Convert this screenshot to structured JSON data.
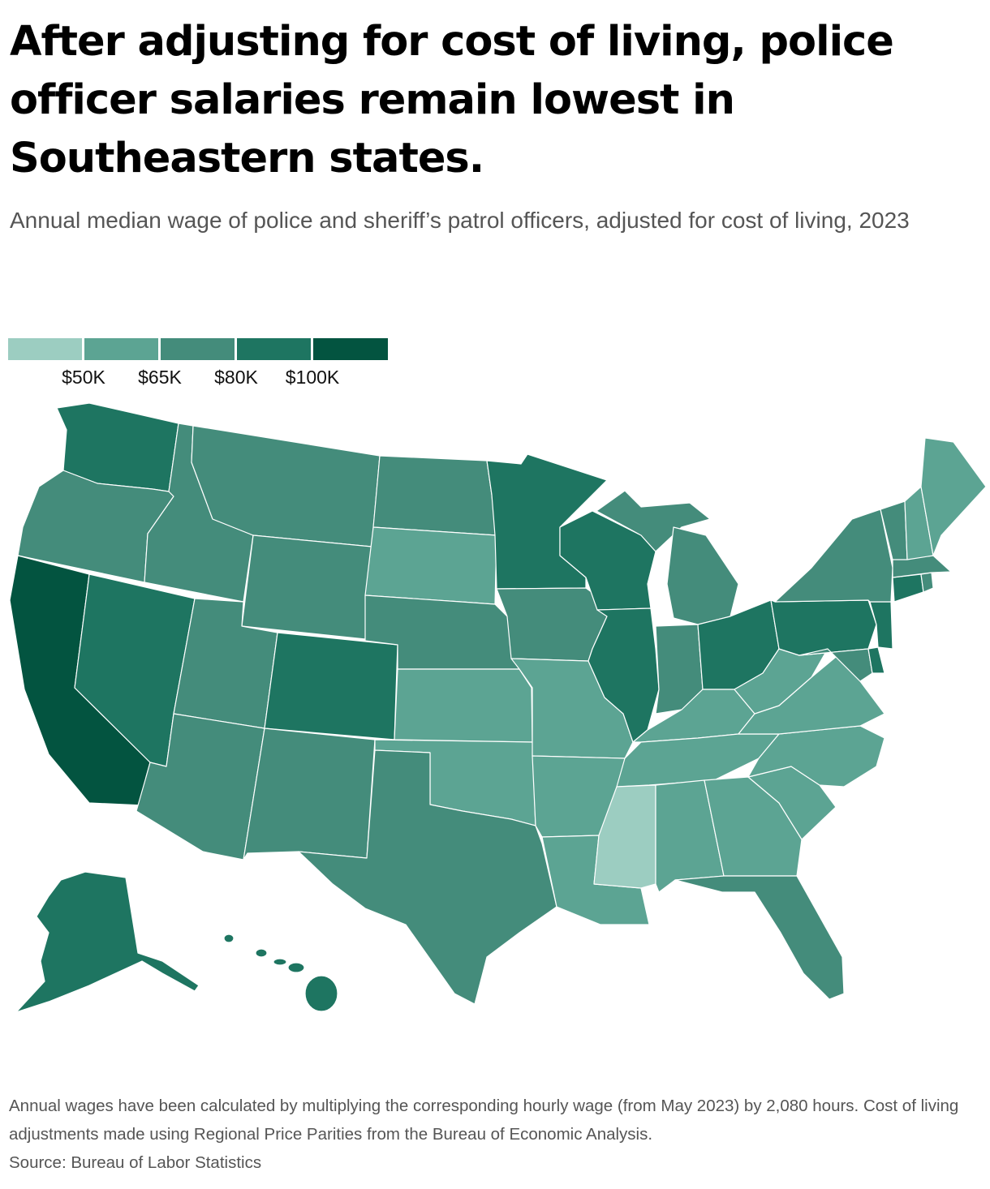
{
  "title": "After adjusting for cost of living, police officer salaries remain lowest in Southeastern states.",
  "subtitle": "Annual median wage of police and sheriff’s patrol officers, adjusted for cost of living, 2023",
  "legend": {
    "colors": [
      "#9ccdc1",
      "#5ca493",
      "#448c7b",
      "#1e7561",
      "#035440"
    ],
    "ticks": [
      "$50K",
      "$65K",
      "$80K",
      "$100K"
    ]
  },
  "states_by_bin": {
    "under_50k": [
      "Mississippi"
    ],
    "50k_65k": [
      "Maine",
      "New Hampshire",
      "South Dakota",
      "Kansas",
      "Missouri",
      "Oklahoma",
      "Arkansas",
      "Louisiana",
      "Alabama",
      "Georgia",
      "South Carolina",
      "North Carolina",
      "Tennessee",
      "Kentucky",
      "Virginia",
      "West Virginia"
    ],
    "65k_80k": [
      "Oregon",
      "Idaho",
      "Montana",
      "Wyoming",
      "Utah",
      "Arizona",
      "New Mexico",
      "Texas",
      "North Dakota",
      "Nebraska",
      "Iowa",
      "Michigan",
      "Indiana",
      "Florida",
      "New York",
      "Vermont",
      "Massachusetts",
      "Rhode Island",
      "Maryland"
    ],
    "80k_100k": [
      "Washington",
      "Nevada",
      "Colorado",
      "Minnesota",
      "Wisconsin",
      "Illinois",
      "Ohio",
      "Pennsylvania",
      "New Jersey",
      "Connecticut",
      "Delaware",
      "Alaska",
      "Hawaii"
    ],
    "over_100k": [
      "California"
    ]
  },
  "notes": {
    "method": "Annual wages have been calculated by multiplying the corresponding hourly wage (from May 2023) by 2,080 hours. Cost of living adjustments made using Regional Price Parities from the Bureau of Economic Analysis.",
    "source": "Source: Bureau of Labor Statistics"
  }
}
